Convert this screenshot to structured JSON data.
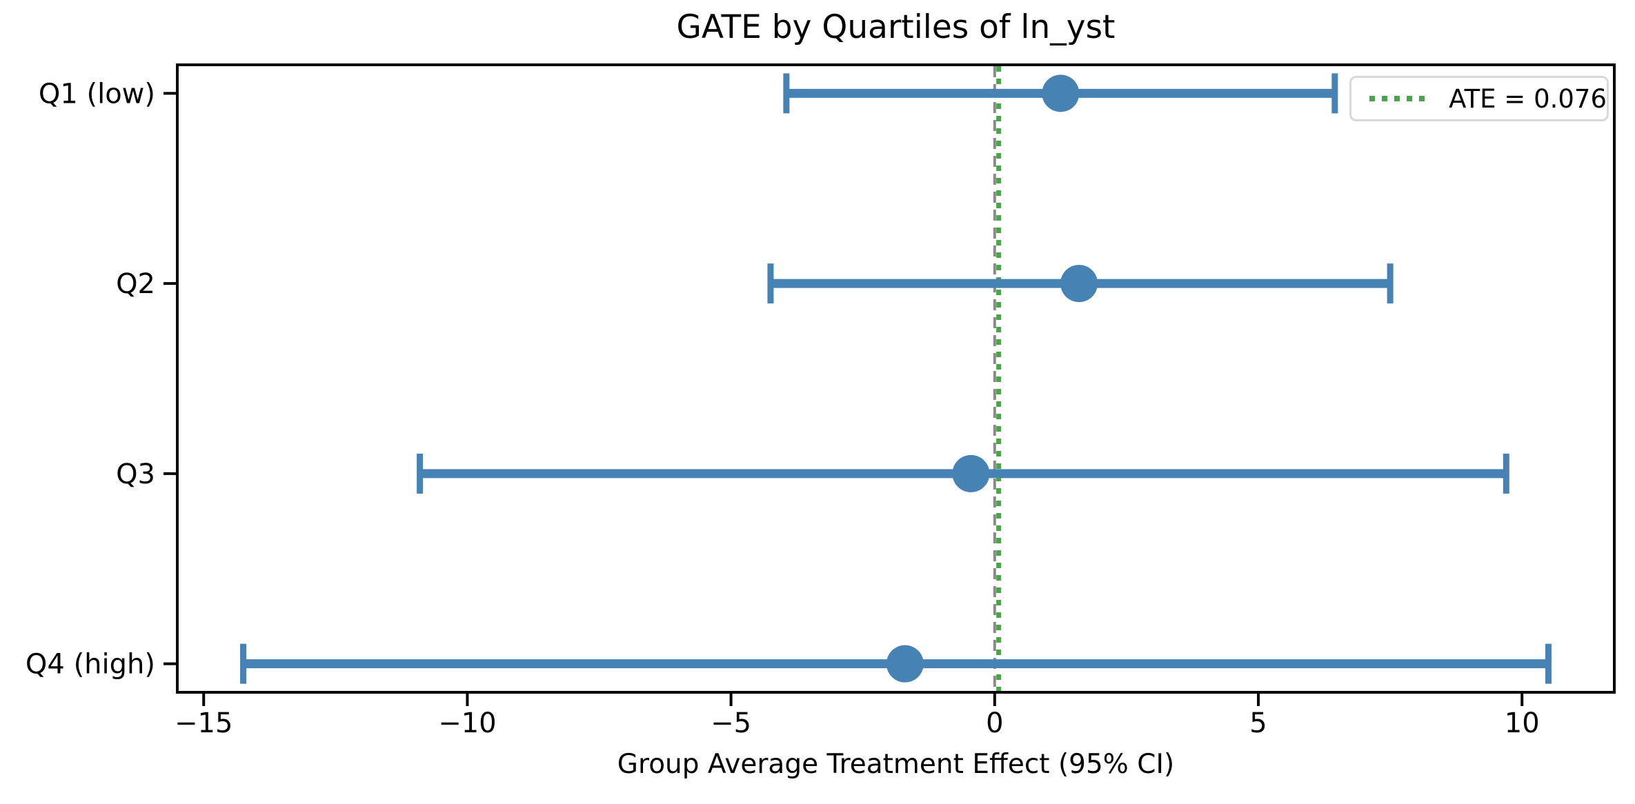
{
  "figure": {
    "title": "GATE by Quartiles of ln_yst",
    "xlabel": "Group Average Treatment Effect (95% CI)",
    "legend": {
      "ate_label": "ATE = 0.076"
    }
  },
  "colors": {
    "background": "#ffffff",
    "errorbar_blue": "#4682b4",
    "ate_green": "#4aa54a",
    "zero_gray": "#8a8a8a",
    "spine_black": "#000000",
    "legend_border": "#d8d8d8",
    "text_black": "#000000"
  },
  "chart_data": {
    "type": "scatter",
    "subtype": "horizontal-errorbar",
    "title": "GATE by Quartiles of ln_yst",
    "xlabel": "Group Average Treatment Effect (95% CI)",
    "ylabel": "",
    "categories": [
      "Q1 (low)",
      "Q2",
      "Q3",
      "Q4 (high)"
    ],
    "estimates": [
      1.25,
      1.6,
      -0.45,
      -1.7
    ],
    "ci_low": [
      -3.95,
      -4.25,
      -10.9,
      -14.25
    ],
    "ci_high": [
      6.45,
      7.5,
      9.7,
      10.5
    ],
    "ci_level": "95%",
    "ate": 0.076,
    "zero_line": 0,
    "xticks": [
      -15,
      -10,
      -5,
      0,
      5,
      10
    ],
    "xlim": [
      -15.5,
      11.75
    ],
    "grid": false,
    "legend_entries": [
      "ATE = 0.076"
    ],
    "legend_position": "upper right"
  }
}
